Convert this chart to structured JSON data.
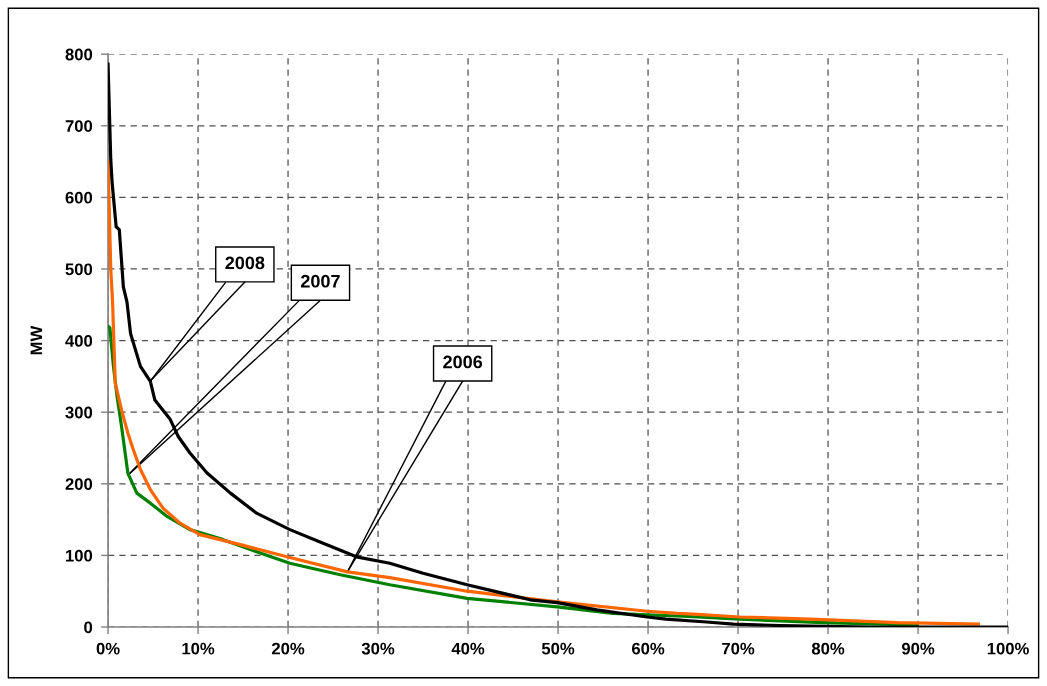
{
  "chart_data": {
    "type": "line",
    "ylabel": "MW",
    "xlim": [
      0,
      100
    ],
    "xticks": [
      {
        "value": 0,
        "label": "0%"
      },
      {
        "value": 10,
        "label": "10%"
      },
      {
        "value": 20,
        "label": "20%"
      },
      {
        "value": 30,
        "label": "30%"
      },
      {
        "value": 40,
        "label": "40%"
      },
      {
        "value": 50,
        "label": "50%"
      },
      {
        "value": 60,
        "label": "60%"
      },
      {
        "value": 70,
        "label": "70%"
      },
      {
        "value": 80,
        "label": "80%"
      },
      {
        "value": 90,
        "label": "90%"
      },
      {
        "value": 100,
        "label": "100%"
      }
    ],
    "ylim": [
      0,
      800
    ],
    "yticks": [
      0,
      100,
      200,
      300,
      400,
      500,
      600,
      700,
      800
    ],
    "grid": true,
    "line_style": "solid",
    "series": [
      {
        "color": "#008000",
        "x": [
          0,
          0.2,
          0.6,
          1,
          1.5,
          2.2,
          3.2,
          4.7,
          6.6,
          9.1,
          12.8,
          16.5,
          20.2,
          25.8,
          31.3,
          39.9,
          49.9,
          56.1,
          63.9,
          70.2,
          79.4,
          89.9
        ],
        "values": [
          420,
          418,
          364,
          322,
          280,
          215,
          187,
          173,
          154,
          136,
          122,
          105,
          89,
          73,
          59,
          40,
          28,
          19,
          15,
          11,
          6,
          3
        ]
      },
      {
        "color": "#ff6600",
        "x": [
          0,
          0.3,
          0.5,
          0.8,
          1.5,
          2.2,
          2.8,
          3.6,
          4.7,
          6.1,
          8,
          10.2,
          14.7,
          20.2,
          26.6,
          31.3,
          39.9,
          49.9,
          59.9,
          63.3,
          65,
          70.2,
          78,
          87.7,
          96.7
        ],
        "values": [
          650,
          500,
          455,
          341,
          303,
          271,
          248,
          220,
          192,
          166,
          145,
          129,
          115,
          97,
          77,
          69,
          50,
          35,
          22,
          19,
          18,
          14,
          11,
          6,
          4
        ]
      },
      {
        "color": "#000000",
        "x": [
          0,
          0.3,
          0.45,
          0.9,
          1.25,
          1.7,
          2.1,
          2.5,
          3.6,
          4.7,
          5.2,
          6.9,
          7.8,
          9.1,
          11,
          13.6,
          16.5,
          20.2,
          23.9,
          27.6,
          31.3,
          35,
          39.9,
          46.9,
          49.9,
          54.3,
          59.9,
          62,
          66.5,
          69.5,
          74.7,
          84.7,
          100
        ],
        "values": [
          786,
          653,
          621,
          559,
          555,
          475,
          454,
          410,
          364,
          343,
          317,
          290,
          266,
          243,
          215,
          187,
          159,
          136,
          117,
          98,
          89,
          75,
          59,
          38,
          34,
          24,
          14,
          11,
          7,
          4,
          2,
          0,
          0
        ]
      }
    ],
    "annotations": [
      {
        "text": "2008",
        "x": 4.8,
        "y": 345
      },
      {
        "text": "2007",
        "x": 2.2,
        "y": 212
      },
      {
        "text": "2006",
        "x": 26.6,
        "y": 77
      }
    ]
  }
}
